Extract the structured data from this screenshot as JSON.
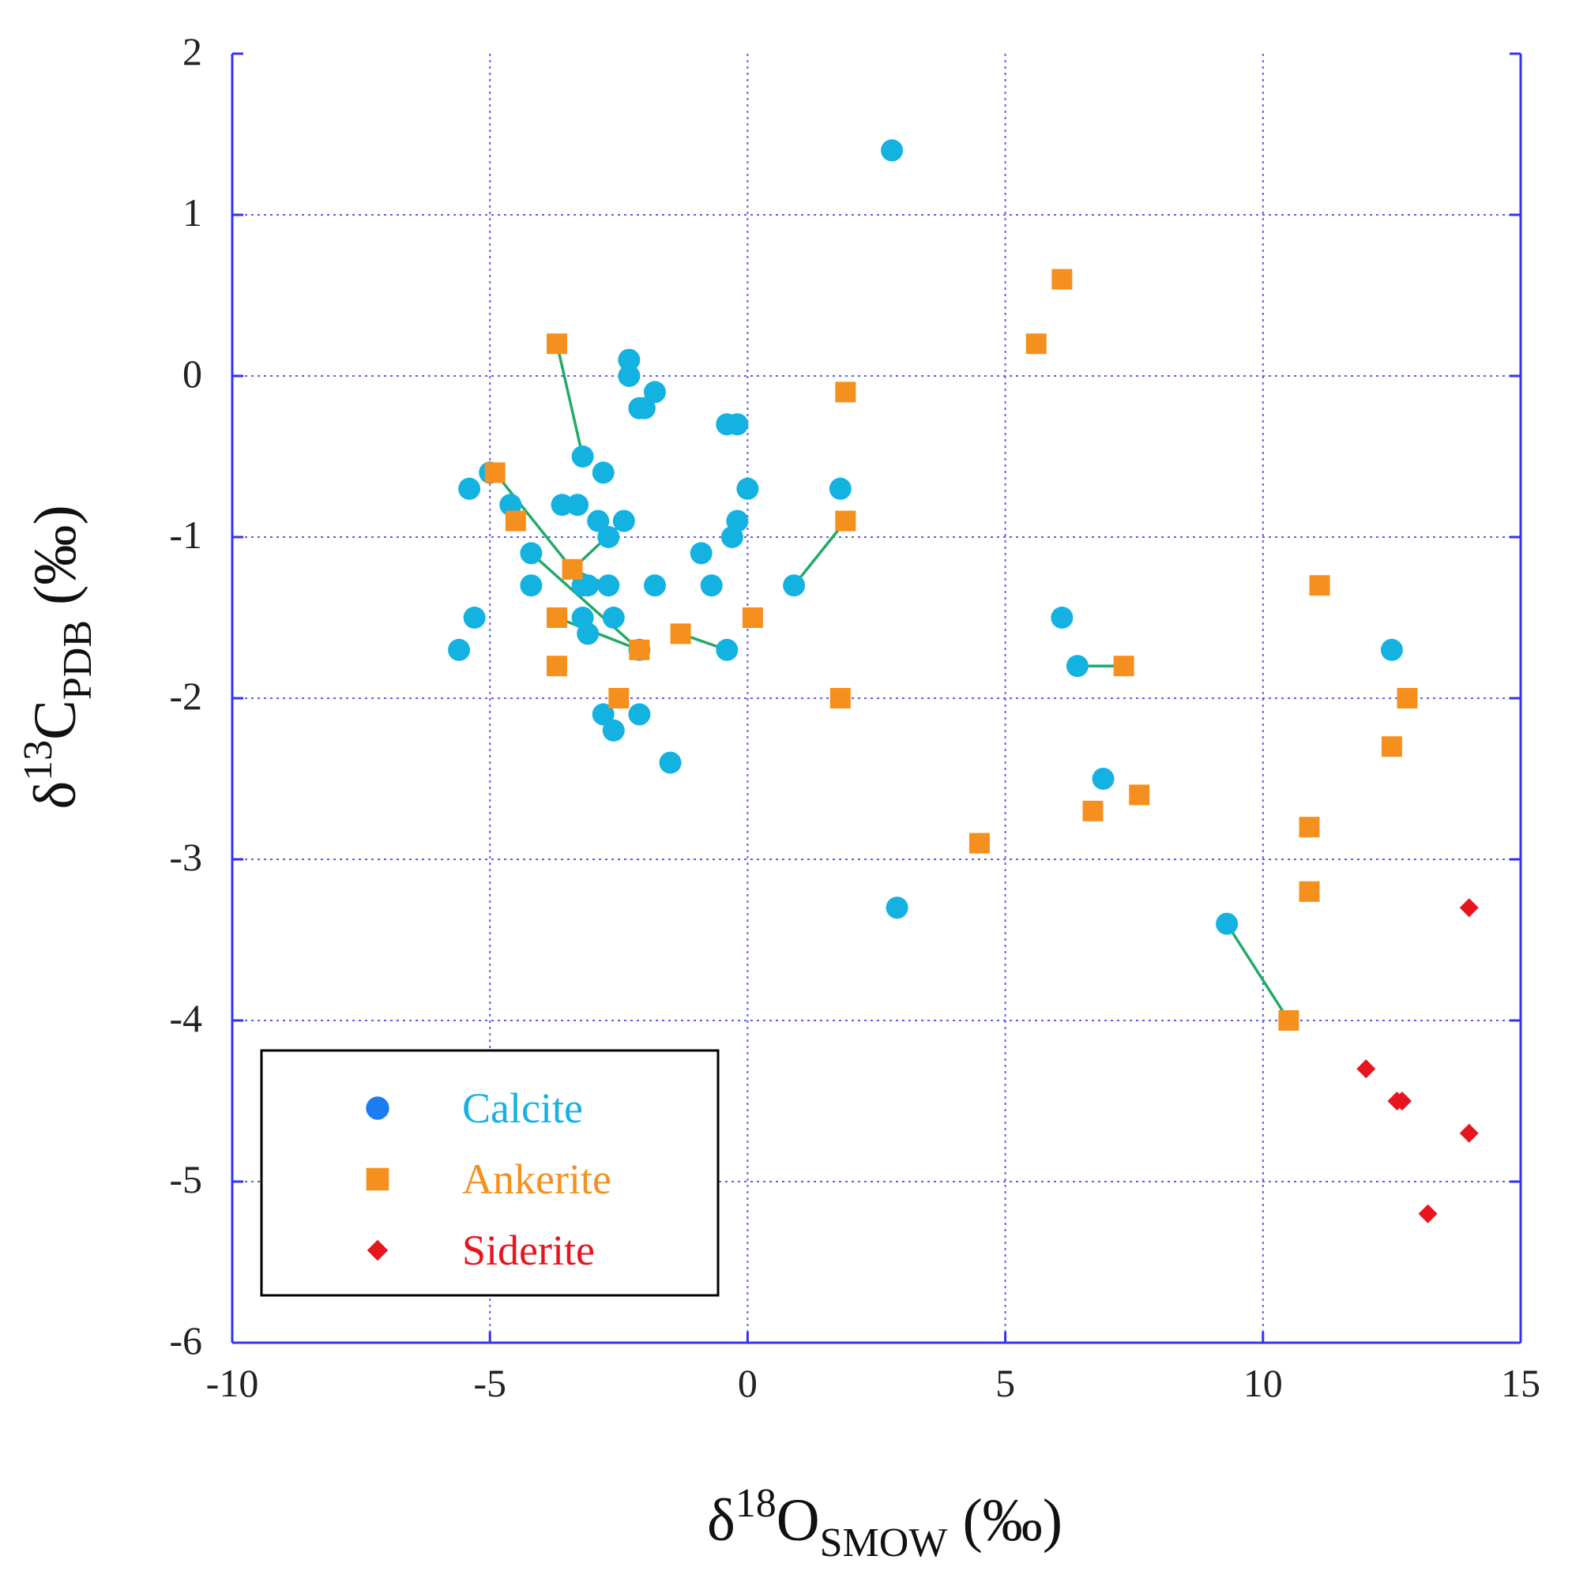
{
  "chart_data": {
    "type": "scatter",
    "title": "",
    "xlabel": {
      "prefix": "δ",
      "sup": "18",
      "main": "O",
      "sub": "SMOW",
      "unit": " (‰)"
    },
    "ylabel": {
      "prefix": "δ",
      "sup": "13",
      "main": "C",
      "sub": "PDB",
      "unit": " (‰)"
    },
    "xlim": [
      -10,
      15
    ],
    "ylim": [
      -6,
      2
    ],
    "xticks": [
      -10,
      -5,
      0,
      5,
      10,
      15
    ],
    "yticks": [
      -6,
      -5,
      -4,
      -3,
      -2,
      -1,
      0,
      1,
      2
    ],
    "xtick_labels": [
      "-10",
      "-5",
      "0",
      "5",
      "10",
      "15"
    ],
    "ytick_labels": [
      "-6",
      "-5",
      "-4",
      "-3",
      "-2",
      "-1",
      "0",
      "1",
      "2"
    ],
    "grid": true,
    "legend_position": "bottom-left",
    "colors": {
      "grid": "#3333ee",
      "connector": "#22aa66",
      "legend_border": "#000000"
    },
    "series": [
      {
        "name": "Calcite",
        "marker": "circle",
        "color": "#14b2e0",
        "legend_marker_color": "#1a7ef0",
        "x": [
          2.8,
          -2.3,
          -2.3,
          -1.8,
          -2.1,
          -2.0,
          -0.4,
          -0.2,
          -3.2,
          -2.8,
          -5.0,
          -5.4,
          -4.6,
          -3.6,
          -3.3,
          -2.9,
          -2.4,
          -2.7,
          -4.2,
          -4.2,
          -3.2,
          -3.1,
          -2.7,
          -1.8,
          -5.3,
          -3.2,
          -2.6,
          -3.1,
          -5.6,
          -2.1,
          -2.8,
          -2.6,
          -2.1,
          -1.5,
          -0.9,
          -0.7,
          -0.3,
          -0.2,
          0.0,
          -0.4,
          0.9,
          1.8,
          6.1,
          6.4,
          6.9,
          2.9,
          9.3,
          12.5
        ],
        "y": [
          1.4,
          0.1,
          0.0,
          -0.1,
          -0.2,
          -0.2,
          -0.3,
          -0.3,
          -0.5,
          -0.6,
          -0.6,
          -0.7,
          -0.8,
          -0.8,
          -0.8,
          -0.9,
          -0.9,
          -1.0,
          -1.1,
          -1.3,
          -1.3,
          -1.3,
          -1.3,
          -1.3,
          -1.5,
          -1.5,
          -1.5,
          -1.6,
          -1.7,
          -1.7,
          -2.1,
          -2.2,
          -2.1,
          -2.4,
          -1.1,
          -1.3,
          -1.0,
          -0.9,
          -0.7,
          -1.7,
          -1.3,
          -0.7,
          -1.5,
          -1.8,
          -2.5,
          -3.3,
          -3.4,
          -1.7
        ]
      },
      {
        "name": "Ankerite",
        "marker": "square",
        "color": "#f5901e",
        "x": [
          -3.7,
          -4.9,
          -4.5,
          -3.4,
          -3.7,
          -3.7,
          -2.5,
          -1.3,
          -2.1,
          0.1,
          1.9,
          1.9,
          1.8,
          5.6,
          6.1,
          4.5,
          6.7,
          7.3,
          7.6,
          11.1,
          12.8,
          12.5,
          10.9,
          10.9,
          10.5
        ],
        "y": [
          0.2,
          -0.6,
          -0.9,
          -1.2,
          -1.5,
          -1.8,
          -2.0,
          -1.6,
          -1.7,
          -1.5,
          -0.1,
          -0.9,
          -2.0,
          0.2,
          0.6,
          -2.9,
          -2.7,
          -1.8,
          -2.6,
          -1.3,
          -2.0,
          -2.3,
          -2.8,
          -3.2,
          -4.0
        ]
      },
      {
        "name": "Siderite",
        "marker": "diamond",
        "color": "#e8141e",
        "x": [
          14.0,
          12.0,
          12.6,
          12.7,
          14.0,
          13.2
        ],
        "y": [
          -3.3,
          -4.3,
          -4.5,
          -4.5,
          -4.7,
          -5.2
        ]
      }
    ],
    "connector_lines": [
      {
        "from": [
          -3.7,
          0.2
        ],
        "to": [
          -3.2,
          -0.5
        ]
      },
      {
        "from": [
          -4.9,
          -0.6
        ],
        "to": [
          -3.4,
          -1.2
        ]
      },
      {
        "from": [
          -3.4,
          -1.2
        ],
        "to": [
          -2.7,
          -1.3
        ]
      },
      {
        "from": [
          -3.4,
          -1.2
        ],
        "to": [
          -2.4,
          -0.9
        ]
      },
      {
        "from": [
          -4.2,
          -1.1
        ],
        "to": [
          -2.1,
          -1.7
        ]
      },
      {
        "from": [
          -3.7,
          -1.5
        ],
        "to": [
          -2.1,
          -1.7
        ]
      },
      {
        "from": [
          -1.3,
          -1.6
        ],
        "to": [
          -0.4,
          -1.7
        ]
      },
      {
        "from": [
          0.9,
          -1.3
        ],
        "to": [
          1.9,
          -0.9
        ]
      },
      {
        "from": [
          6.4,
          -1.8
        ],
        "to": [
          7.3,
          -1.8
        ]
      },
      {
        "from": [
          9.3,
          -3.4
        ],
        "to": [
          10.5,
          -4.0
        ]
      }
    ]
  }
}
